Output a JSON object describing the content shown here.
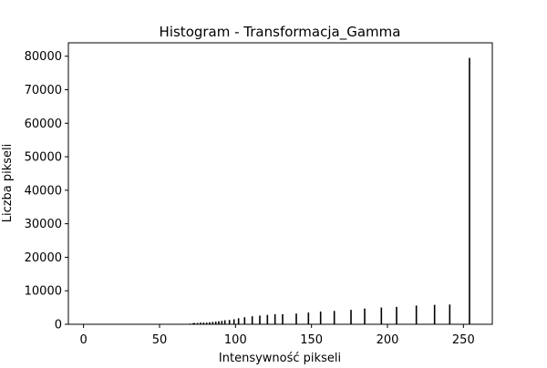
{
  "chart_data": {
    "type": "bar",
    "title": "Histogram - Transformacja_Gamma",
    "xlabel": "Intensywność pikseli",
    "ylabel": "Liczba pikseli",
    "xlim": [
      -10,
      269
    ],
    "ylim": [
      0,
      84000
    ],
    "xticks": [
      0,
      50,
      100,
      150,
      200,
      250
    ],
    "yticks": [
      0,
      10000,
      20000,
      30000,
      40000,
      50000,
      60000,
      70000,
      80000
    ],
    "bar_color": "#000000",
    "grid": false,
    "legend": "none",
    "x": [
      70,
      72,
      73,
      75,
      77,
      79,
      81,
      83,
      85,
      87,
      89,
      91,
      93,
      96,
      99,
      102,
      106,
      111,
      116,
      121,
      126,
      131,
      140,
      148,
      156,
      165,
      176,
      185,
      196,
      206,
      219,
      231,
      241,
      254
    ],
    "values": [
      200,
      300,
      400,
      400,
      500,
      500,
      500,
      600,
      700,
      800,
      900,
      1000,
      1200,
      1300,
      1500,
      1800,
      2100,
      2400,
      2600,
      2800,
      3000,
      3000,
      3200,
      3500,
      3800,
      4000,
      4300,
      4700,
      5000,
      5200,
      5600,
      5800,
      5900,
      79500
    ]
  }
}
